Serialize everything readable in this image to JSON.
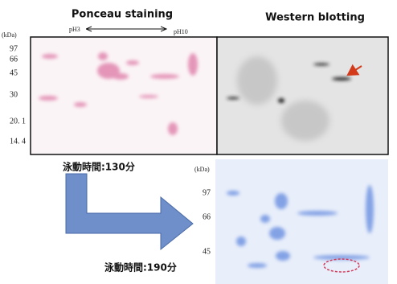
{
  "figure": {
    "top": {
      "left_title": "Ponceau staining",
      "right_title": "Western blotting",
      "unit": "(kDa)",
      "ph_left": "pH3",
      "ph_right": "pH10",
      "markers": [
        "97",
        "66",
        "45",
        "30",
        "20. 1",
        "14. 4"
      ],
      "time_label": "泳動時間:130分"
    },
    "bottom": {
      "unit": "(kDa)",
      "markers": [
        "97",
        "66",
        "45"
      ],
      "time_label": "泳動時間:190分"
    }
  }
}
